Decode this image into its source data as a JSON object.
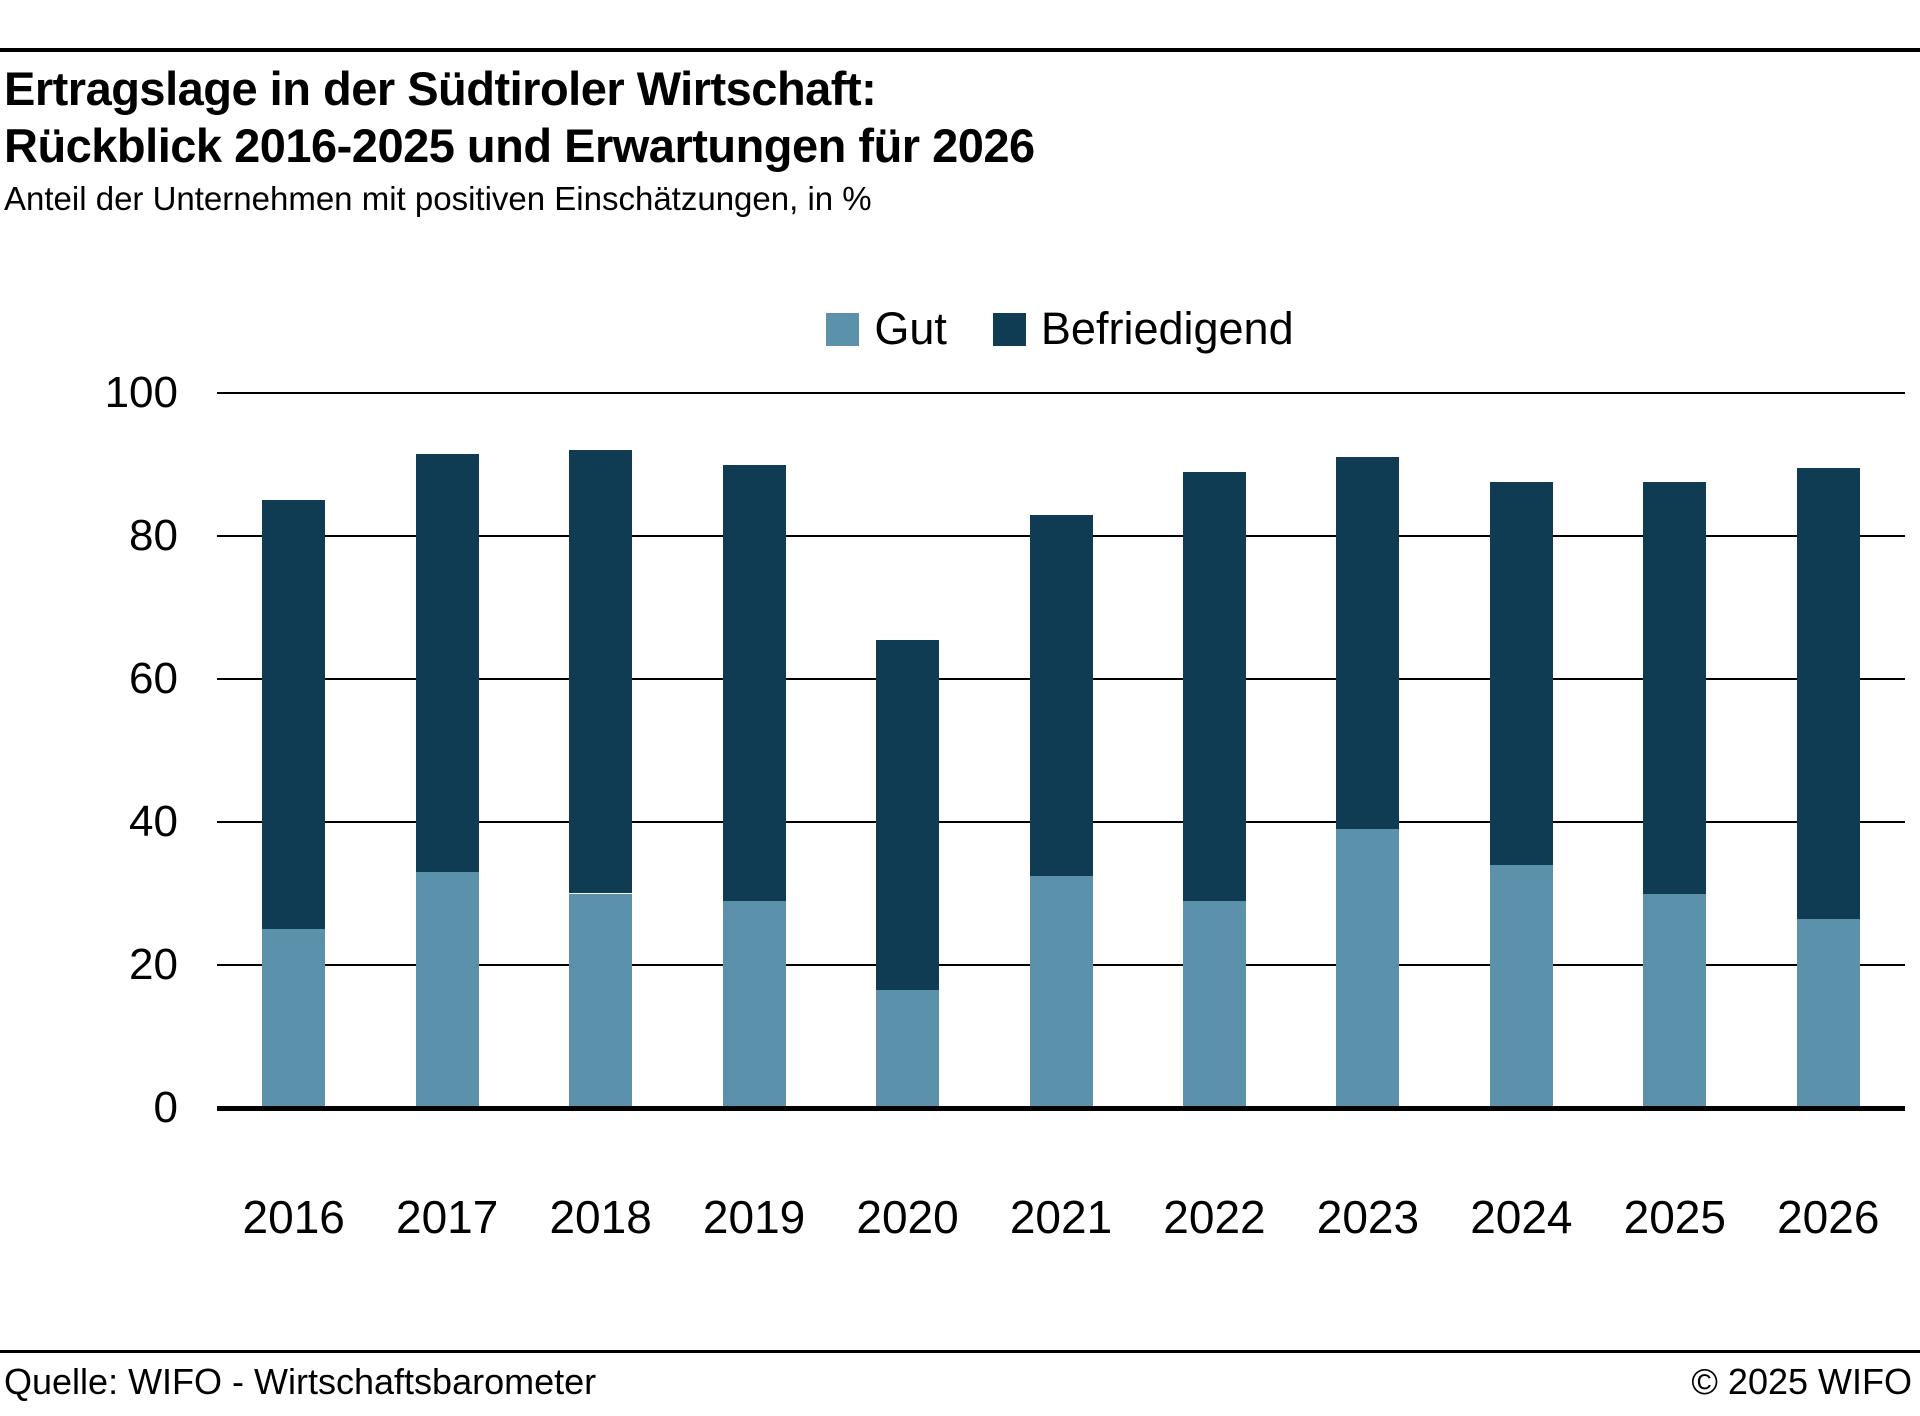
{
  "header": {
    "title_line1": "Ertragslage in der Südtiroler Wirtschaft:",
    "title_line2": "Rückblick 2016-2025 und Erwartungen für 2026",
    "subtitle": "Anteil der Unternehmen mit positiven Einschätzungen, in %"
  },
  "legend": [
    {
      "label": "Gut",
      "color": "#5b91ab"
    },
    {
      "label": "Befriedigend",
      "color": "#0f3c52"
    }
  ],
  "chart_data": {
    "type": "bar",
    "stacked": true,
    "title": "Ertragslage in der Südtiroler Wirtschaft: Rückblick 2016-2025 und Erwartungen für 2026",
    "subtitle": "Anteil der Unternehmen mit positiven Einschätzungen, in %",
    "categories": [
      "2016",
      "2017",
      "2018",
      "2019",
      "2020",
      "2021",
      "2022",
      "2023",
      "2024",
      "2025",
      "2026"
    ],
    "series": [
      {
        "name": "Gut",
        "color": "#5b91ab",
        "values": [
          25,
          33,
          30,
          29,
          16.5,
          32.5,
          29,
          39,
          34,
          30,
          26.5
        ]
      },
      {
        "name": "Befriedigend",
        "color": "#0f3c52",
        "values": [
          60,
          58.5,
          62,
          61,
          49,
          50.5,
          60,
          52,
          53.5,
          57.5,
          63
        ]
      }
    ],
    "stack_totals": [
      85,
      91.5,
      92,
      90,
      65.5,
      83,
      89,
      91,
      87.5,
      87.5,
      89.5
    ],
    "xlabel": "",
    "ylabel": "",
    "ylim": [
      0,
      100
    ],
    "yticks": [
      0,
      20,
      40,
      60,
      80,
      100
    ],
    "grid": "horizontal",
    "legend_position": "top-center"
  },
  "footer": {
    "source": "Quelle: WIFO - Wirtschaftsbarometer",
    "copyright": "© 2025 WIFO"
  }
}
